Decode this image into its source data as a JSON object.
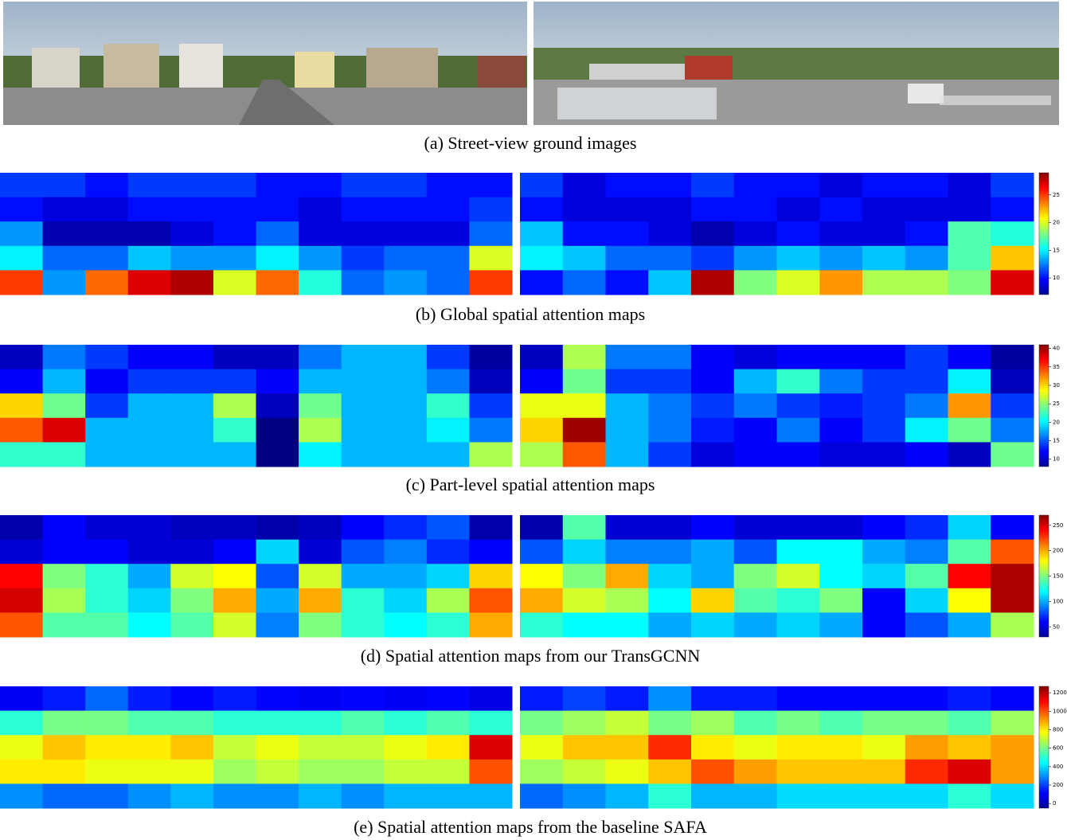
{
  "images_caption": "(a) Street-view ground images",
  "panels": [
    {
      "caption": "(b) Global spatial attention maps",
      "colorbar": {
        "lim": [
          7,
          29
        ],
        "ticks": [
          10,
          15,
          20,
          25
        ]
      },
      "maps": [
        [
          [
            11,
            11,
            10,
            11,
            11,
            11,
            10,
            10,
            11,
            11,
            10,
            10
          ],
          [
            10,
            9,
            9,
            10,
            10,
            10,
            10,
            9,
            10,
            10,
            10,
            11
          ],
          [
            13,
            8,
            8,
            8,
            9,
            10,
            12,
            9,
            9,
            9,
            9,
            12
          ],
          [
            15,
            12,
            12,
            14,
            13,
            13,
            15,
            13,
            11,
            12,
            12,
            20
          ],
          [
            25,
            13,
            24,
            27,
            28,
            20,
            24,
            16,
            12,
            13,
            12,
            25
          ]
        ],
        [
          [
            11,
            9,
            10,
            10,
            11,
            10,
            10,
            9,
            10,
            10,
            9,
            11
          ],
          [
            10,
            9,
            9,
            9,
            10,
            10,
            9,
            10,
            9,
            9,
            9,
            10
          ],
          [
            14,
            10,
            10,
            9,
            8,
            9,
            10,
            9,
            9,
            10,
            17,
            16
          ],
          [
            15,
            14,
            12,
            12,
            11,
            13,
            14,
            13,
            14,
            13,
            17,
            22
          ],
          [
            10,
            12,
            10,
            14,
            28,
            18,
            20,
            23,
            19,
            19,
            18,
            27
          ]
        ]
      ]
    },
    {
      "caption": "(c) Part-level spatial attention maps",
      "colorbar": {
        "lim": [
          8,
          41
        ],
        "ticks": [
          10,
          15,
          20,
          25,
          30,
          35,
          40
        ]
      },
      "maps": [
        [
          [
            10,
            16,
            14,
            12,
            12,
            10,
            10,
            16,
            18,
            18,
            14,
            9
          ],
          [
            12,
            18,
            12,
            14,
            14,
            14,
            12,
            18,
            18,
            18,
            16,
            10
          ],
          [
            30,
            24,
            14,
            18,
            18,
            26,
            10,
            24,
            18,
            18,
            22,
            14
          ],
          [
            34,
            38,
            18,
            18,
            18,
            22,
            8,
            26,
            18,
            18,
            20,
            16
          ],
          [
            22,
            22,
            18,
            18,
            18,
            18,
            8,
            20,
            18,
            18,
            18,
            26
          ]
        ],
        [
          [
            10,
            26,
            16,
            16,
            12,
            11,
            12,
            12,
            12,
            14,
            12,
            9
          ],
          [
            12,
            24,
            14,
            14,
            12,
            18,
            22,
            16,
            14,
            14,
            20,
            10
          ],
          [
            28,
            28,
            18,
            16,
            14,
            16,
            14,
            13,
            14,
            16,
            32,
            14
          ],
          [
            30,
            40,
            18,
            16,
            13,
            12,
            16,
            12,
            14,
            20,
            24,
            16
          ],
          [
            26,
            34,
            18,
            14,
            11,
            12,
            12,
            11,
            11,
            12,
            10,
            24
          ]
        ]
      ]
    },
    {
      "caption": "(d) Spatial attention maps from our TransGCNN",
      "colorbar": {
        "lim": [
          30,
          270
        ],
        "ticks": [
          50,
          100,
          150,
          200,
          250
        ]
      },
      "maps": [
        [
          [
            40,
            60,
            50,
            50,
            45,
            45,
            40,
            45,
            60,
            70,
            80,
            40
          ],
          [
            50,
            60,
            60,
            50,
            50,
            60,
            110,
            50,
            80,
            90,
            70,
            60
          ],
          [
            240,
            150,
            130,
            100,
            170,
            180,
            80,
            170,
            100,
            100,
            110,
            190
          ],
          [
            250,
            160,
            130,
            110,
            150,
            200,
            100,
            200,
            130,
            110,
            160,
            220
          ],
          [
            220,
            140,
            140,
            120,
            140,
            170,
            90,
            150,
            130,
            120,
            130,
            200
          ]
        ],
        [
          [
            40,
            140,
            50,
            50,
            60,
            50,
            50,
            50,
            60,
            70,
            110,
            60
          ],
          [
            80,
            110,
            90,
            90,
            100,
            80,
            120,
            120,
            100,
            90,
            140,
            220
          ],
          [
            180,
            150,
            200,
            110,
            100,
            150,
            170,
            120,
            110,
            140,
            240,
            260
          ],
          [
            200,
            170,
            160,
            120,
            190,
            140,
            130,
            150,
            60,
            110,
            180,
            260
          ],
          [
            130,
            120,
            120,
            100,
            110,
            100,
            110,
            100,
            60,
            80,
            100,
            160
          ]
        ]
      ]
    },
    {
      "caption": "(e) Spatial attention maps from the baseline SAFA",
      "colorbar": {
        "lim": [
          -50,
          1270
        ],
        "ticks": [
          0,
          200,
          400,
          600,
          800,
          1000,
          1200
        ]
      },
      "maps": [
        [
          [
            100,
            150,
            250,
            150,
            120,
            150,
            120,
            100,
            120,
            100,
            120,
            80
          ],
          [
            500,
            600,
            600,
            550,
            550,
            500,
            500,
            500,
            550,
            500,
            550,
            500
          ],
          [
            750,
            850,
            800,
            800,
            850,
            700,
            750,
            700,
            700,
            750,
            800,
            1150
          ],
          [
            800,
            800,
            750,
            750,
            750,
            650,
            700,
            650,
            650,
            700,
            700,
            1000
          ],
          [
            300,
            250,
            250,
            300,
            350,
            300,
            300,
            350,
            300,
            350,
            350,
            350
          ]
        ],
        [
          [
            150,
            200,
            150,
            300,
            150,
            150,
            120,
            120,
            120,
            120,
            150,
            120
          ],
          [
            600,
            650,
            700,
            600,
            650,
            550,
            600,
            550,
            600,
            600,
            550,
            650
          ],
          [
            750,
            850,
            850,
            1050,
            800,
            750,
            800,
            800,
            750,
            900,
            850,
            900
          ],
          [
            650,
            700,
            750,
            850,
            1000,
            900,
            850,
            850,
            850,
            1050,
            1150,
            900
          ],
          [
            250,
            300,
            350,
            500,
            350,
            350,
            400,
            400,
            400,
            400,
            500,
            400
          ]
        ]
      ]
    }
  ]
}
